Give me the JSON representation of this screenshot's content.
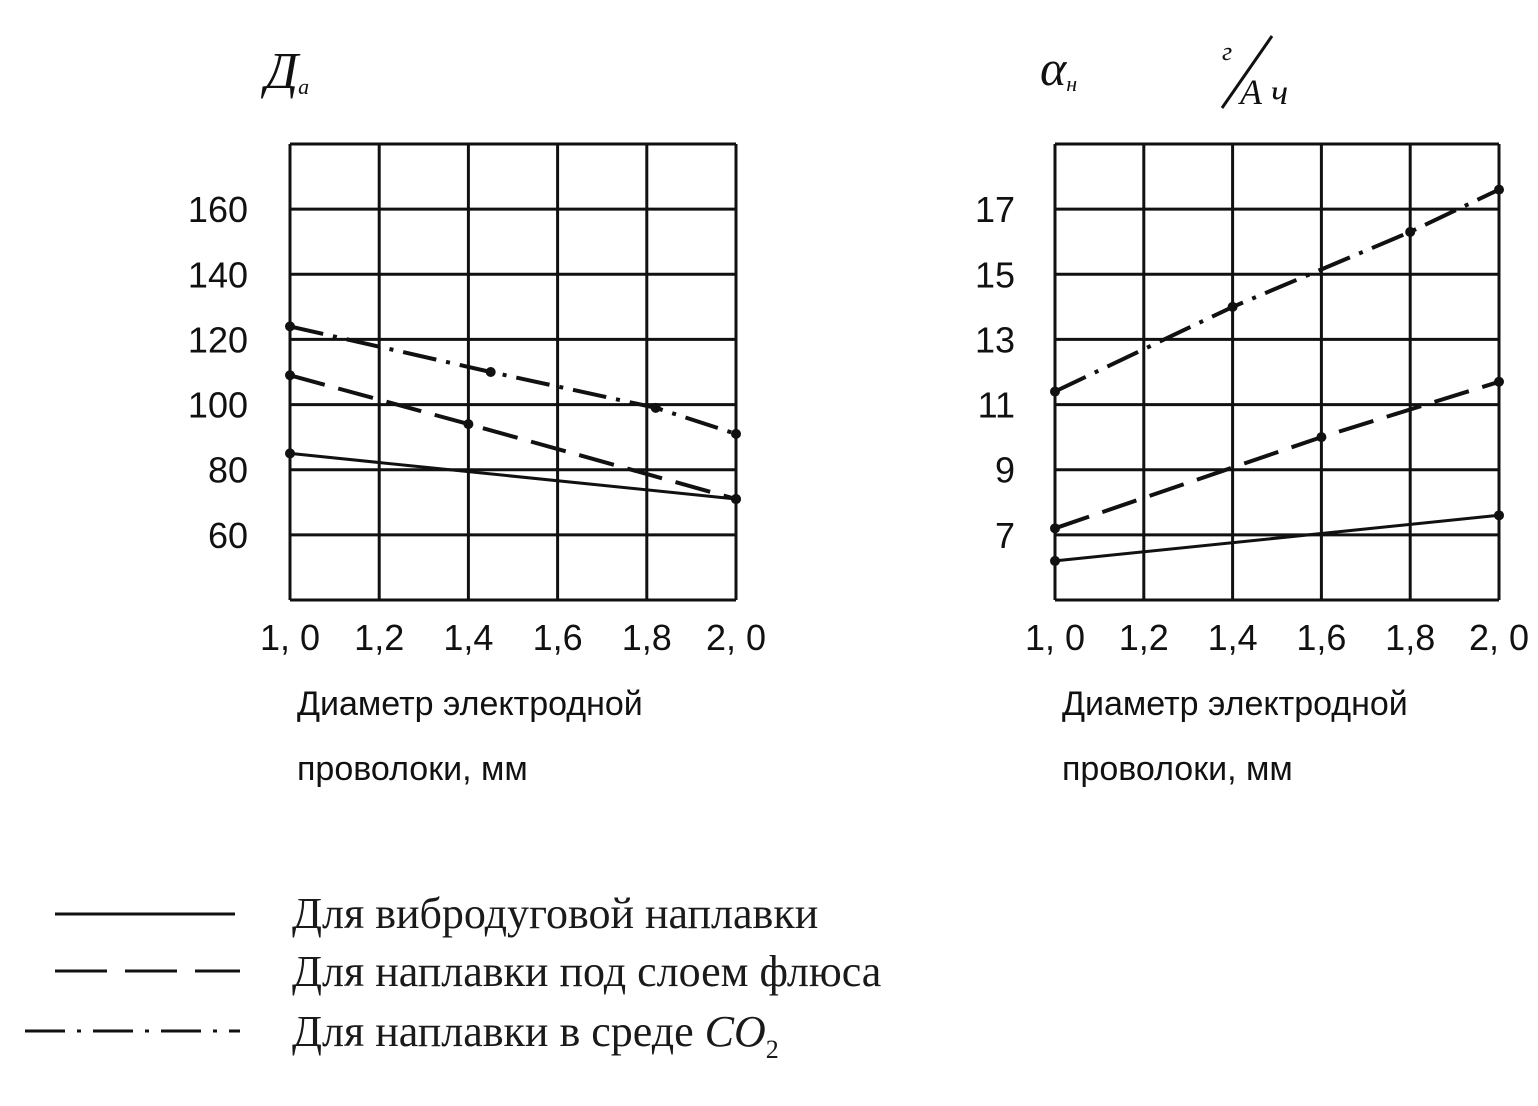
{
  "chart_data": [
    {
      "type": "line",
      "ylabel_main": "Д",
      "ylabel_sub": "а",
      "xlabel_line1": "Диаметр электродной",
      "xlabel_line2": "проволоки, мм",
      "x_ticks": [
        "1, 0",
        "1,2",
        "1,4",
        "1,6",
        "1,8",
        "2, 0"
      ],
      "y_ticks": [
        "160",
        "140",
        "120",
        "100",
        "80",
        "60"
      ],
      "y_tick_values": [
        160,
        140,
        120,
        100,
        80,
        60
      ],
      "xlim": [
        1.0,
        2.0
      ],
      "ylim": [
        40,
        180
      ],
      "grid": true,
      "series": [
        {
          "style": "solid",
          "x": [
            1.0,
            2.0
          ],
          "y": [
            85,
            71
          ]
        },
        {
          "style": "dashed",
          "x": [
            1.0,
            1.4,
            2.0
          ],
          "y": [
            109,
            94,
            71
          ]
        },
        {
          "style": "dashdot",
          "x": [
            1.0,
            1.45,
            1.82,
            2.0
          ],
          "y": [
            124,
            110,
            99,
            91
          ]
        }
      ]
    },
    {
      "type": "line",
      "ylabel_main": "α",
      "ylabel_sub": "н",
      "unit_top": "г",
      "unit_bottom": "А ч",
      "xlabel_line1": "Диаметр электродной",
      "xlabel_line2": "проволоки, мм",
      "x_ticks": [
        "1, 0",
        "1,2",
        "1,4",
        "1,6",
        "1,8",
        "2, 0"
      ],
      "y_ticks": [
        "17",
        "15",
        "13",
        "11",
        "9",
        "7"
      ],
      "y_tick_values": [
        17,
        15,
        13,
        11,
        9,
        7
      ],
      "xlim": [
        1.0,
        2.0
      ],
      "ylim": [
        5,
        19
      ],
      "grid": true,
      "series": [
        {
          "style": "solid",
          "x": [
            1.0,
            2.0
          ],
          "y": [
            6.2,
            7.6
          ]
        },
        {
          "style": "dashed",
          "x": [
            1.0,
            1.6,
            2.0
          ],
          "y": [
            7.2,
            10.0,
            11.7
          ]
        },
        {
          "style": "dashdot",
          "x": [
            1.0,
            1.4,
            1.8,
            2.0
          ],
          "y": [
            11.4,
            14.0,
            16.3,
            17.6
          ]
        }
      ]
    }
  ],
  "legend": [
    {
      "style": "solid",
      "label": "Для вибродуговой наплавки"
    },
    {
      "style": "dashed",
      "label": "Для наплавки под слоем флюса"
    },
    {
      "style": "dashdot",
      "label": "Для наплавки в среде ",
      "formula_main": "CO",
      "formula_sub": "2"
    }
  ]
}
